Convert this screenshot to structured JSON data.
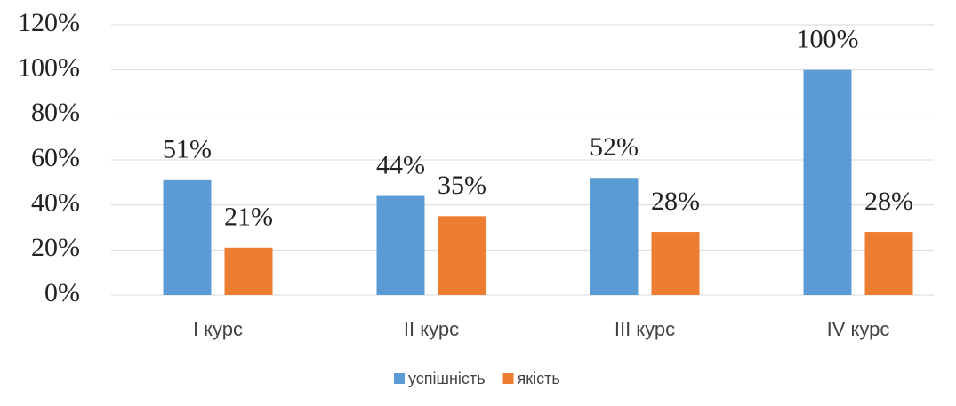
{
  "chart_data": {
    "type": "bar",
    "categories": [
      "I курс",
      "II курс",
      "III курс",
      "IV курс"
    ],
    "series": [
      {
        "name": "успішність",
        "color": "#5b9bd5",
        "values": [
          51,
          44,
          52,
          100
        ],
        "value_labels": [
          "51%",
          "44%",
          "52%",
          "100%"
        ]
      },
      {
        "name": "якість",
        "color": "#ed7d31",
        "values": [
          21,
          35,
          28,
          28
        ],
        "value_labels": [
          "21%",
          "35%",
          "28%",
          "28%"
        ]
      }
    ],
    "ylim": [
      0,
      120
    ],
    "yticks": [
      {
        "value": 0,
        "label": "0%"
      },
      {
        "value": 20,
        "label": "20%"
      },
      {
        "value": 40,
        "label": "40%"
      },
      {
        "value": 60,
        "label": "60%"
      },
      {
        "value": 80,
        "label": "80%"
      },
      {
        "value": 100,
        "label": "100%"
      },
      {
        "value": 120,
        "label": "120%"
      }
    ],
    "grid": true,
    "legend": "bottom"
  }
}
